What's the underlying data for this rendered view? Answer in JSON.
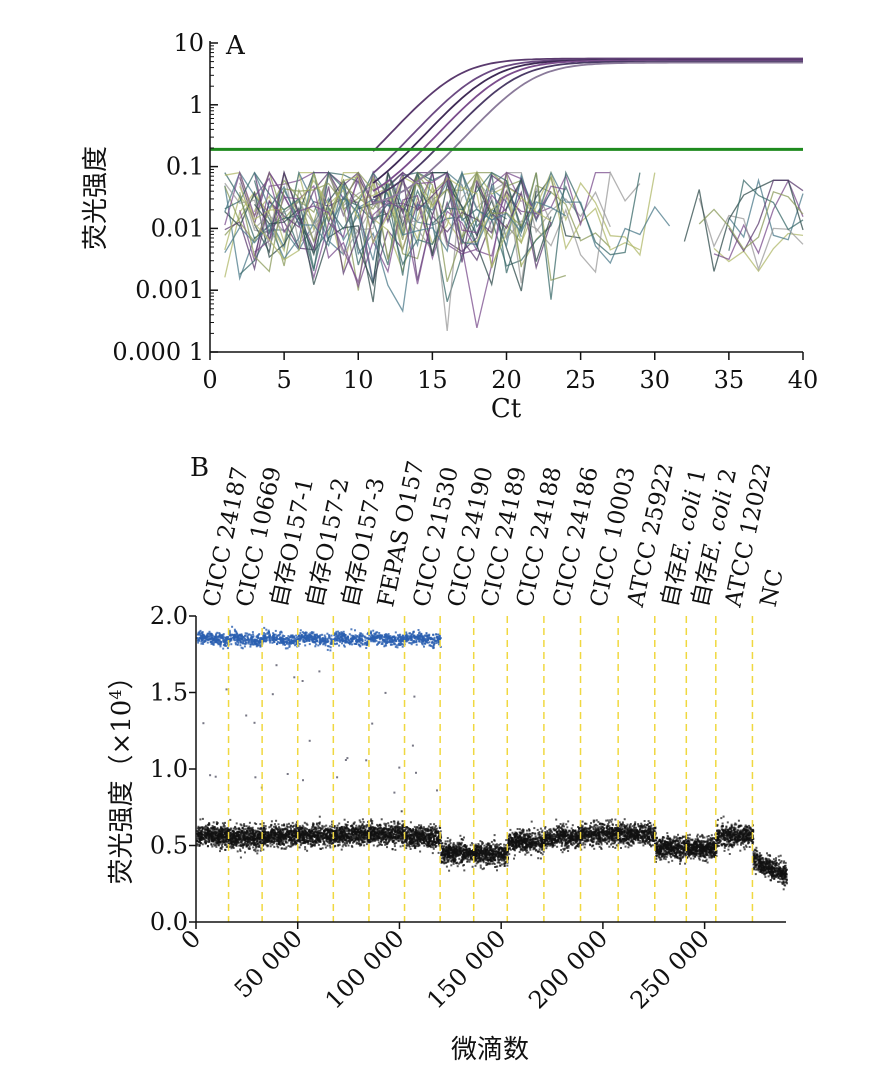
{
  "chart_data": [
    {
      "panel": "A",
      "type": "line",
      "xlabel": "Ct",
      "ylabel": "荧光强度",
      "xlim": [
        0,
        40
      ],
      "ylim": [
        0.0001,
        10
      ],
      "yscale": "log",
      "x_ticks": [
        0,
        5,
        10,
        15,
        20,
        25,
        30,
        35,
        40
      ],
      "x_tick_labels": [
        "0",
        "5",
        "10",
        "15",
        "20",
        "25",
        "30",
        "35",
        "40"
      ],
      "y_ticks": [
        10,
        1,
        0.1,
        0.01,
        0.001,
        0.0001
      ],
      "y_tick_labels": [
        "10",
        "1",
        "0.1",
        "0.01",
        "0.001",
        "0.000 1"
      ],
      "threshold": 0.19,
      "threshold_color": "#1e8a1e",
      "amplification_curves": [
        {
          "ct_midpoint": 16.5,
          "plateau": 5.6,
          "color": "#5a3a6e"
        },
        {
          "ct_midpoint": 18.0,
          "plateau": 5.4,
          "color": "#6b4a82"
        },
        {
          "ct_midpoint": 18.8,
          "plateau": 5.3,
          "color": "#3e2a55"
        },
        {
          "ct_midpoint": 19.6,
          "plateau": 5.2,
          "color": "#7a4c8c"
        },
        {
          "ct_midpoint": 20.4,
          "plateau": 5.0,
          "color": "#4b3b66"
        },
        {
          "ct_midpoint": 21.5,
          "plateau": 4.8,
          "color": "#8a7a9a"
        }
      ],
      "noise_colors": [
        "#5a3a6e",
        "#3a6a6a",
        "#8a9a5a",
        "#b0b86a",
        "#4b7a8a",
        "#7a4c8c",
        "#999999",
        "#2e4a4a"
      ]
    },
    {
      "panel": "B",
      "type": "scatter",
      "xlabel": "微滴数",
      "ylabel": "荧光强度（×10⁴）",
      "ylabel_main": "荧光强度（×10",
      "ylabel_sup": "4",
      "ylabel_tail": "）",
      "xlim": [
        0,
        290000
      ],
      "ylim": [
        0,
        2.0
      ],
      "x_ticks": [
        0,
        50000,
        100000,
        150000,
        200000,
        250000
      ],
      "x_tick_labels": [
        "0",
        "50 000",
        "100 000",
        "150 000",
        "200 000",
        "250 000"
      ],
      "y_ticks": [
        0.0,
        0.5,
        1.0,
        1.5,
        2.0
      ],
      "y_tick_labels": [
        "0.0",
        "0.5",
        "1.0",
        "1.5",
        "2.0"
      ],
      "positive_color": "#2a5fb0",
      "negative_color": "#111111",
      "divider_color": "#f0d840",
      "wells": [
        {
          "label": "CICC 24187",
          "start": 0,
          "end": 16000,
          "positive": true,
          "neg_level": 0.57
        },
        {
          "label": "CICC 10669",
          "start": 16000,
          "end": 32500,
          "positive": true,
          "neg_level": 0.56
        },
        {
          "label_prefix": "自存",
          "label_rest": "O157-1",
          "start": 32500,
          "end": 50000,
          "positive": true,
          "neg_level": 0.57
        },
        {
          "label_prefix": "自存",
          "label_rest": "O157-2",
          "start": 50000,
          "end": 67500,
          "positive": true,
          "neg_level": 0.57
        },
        {
          "label_prefix": "自存",
          "label_rest": "O157-3",
          "start": 67500,
          "end": 85000,
          "positive": true,
          "neg_level": 0.58
        },
        {
          "label": "FEPAS O157",
          "start": 85000,
          "end": 102500,
          "positive": true,
          "neg_level": 0.58
        },
        {
          "label": "CICC 21530",
          "start": 102500,
          "end": 120000,
          "positive": true,
          "neg_level": 0.56
        },
        {
          "label": "CICC 24190",
          "start": 120000,
          "end": 136500,
          "positive": false,
          "neg_level": 0.46
        },
        {
          "label": "CICC 24189",
          "start": 136500,
          "end": 153000,
          "positive": false,
          "neg_level": 0.45
        },
        {
          "label": "CICC 24188",
          "start": 153000,
          "end": 171000,
          "positive": false,
          "neg_level": 0.53
        },
        {
          "label": "CICC 24186",
          "start": 171000,
          "end": 189000,
          "positive": false,
          "neg_level": 0.56
        },
        {
          "label": "CICC 10003",
          "start": 189000,
          "end": 207500,
          "positive": false,
          "neg_level": 0.58
        },
        {
          "label": "ATCC 25922",
          "start": 207500,
          "end": 225500,
          "positive": false,
          "neg_level": 0.58
        },
        {
          "label_prefix": "自存",
          "label_italic": "E. coli",
          "label_rest": " 1",
          "start": 225500,
          "end": 241000,
          "positive": false,
          "neg_level": 0.49
        },
        {
          "label_prefix": "自存",
          "label_italic": "E. coli",
          "label_rest": " 2",
          "start": 241000,
          "end": 255500,
          "positive": false,
          "neg_level": 0.49
        },
        {
          "label": "ATCC 12022",
          "start": 255500,
          "end": 273500,
          "positive": false,
          "neg_level": 0.57
        },
        {
          "label": "NC",
          "start": 273500,
          "end": 290000,
          "positive": false,
          "neg_level": 0.33
        }
      ],
      "positive_level": 1.87
    }
  ]
}
